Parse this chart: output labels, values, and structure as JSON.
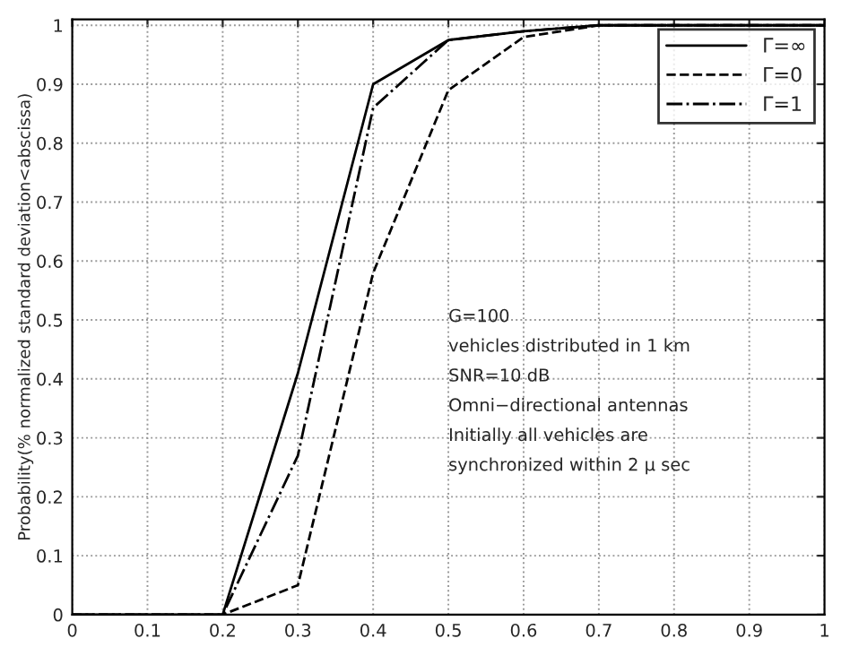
{
  "chart_data": {
    "type": "line",
    "xlabel": null,
    "ylabel": "Probability(% normalized standard deviation<abscissa)",
    "x": [
      0,
      0.1,
      0.2,
      0.3,
      0.4,
      0.5,
      0.6,
      0.7,
      0.8,
      0.9,
      1.0
    ],
    "series": [
      {
        "name": "Γ=∞",
        "color": "#000000",
        "line_style": "solid",
        "values": [
          0,
          0,
          0,
          0.41,
          0.9,
          0.975,
          0.99,
          1.0,
          1.0,
          1.0,
          1.0
        ]
      },
      {
        "name": "Γ=0",
        "color": "#000000",
        "line_style": "dashed",
        "values": [
          0,
          0,
          0,
          0.05,
          0.58,
          0.89,
          0.98,
          1.0,
          1.0,
          1.0,
          1.0
        ]
      },
      {
        "name": "Γ=1",
        "color": "#000000",
        "line_style": "dashdot",
        "values": [
          0,
          0,
          0,
          0.27,
          0.86,
          0.975,
          0.99,
          1.0,
          1.0,
          1.0,
          1.0
        ]
      }
    ],
    "annotations": [
      "G=100",
      "vehicles distributed in 1 km",
      "SNR=10 dB",
      "Omni−directional antennas",
      "Initially all vehicles are",
      "synchronized within 2 μ sec"
    ],
    "xlim": [
      0,
      1
    ],
    "xticks": [
      0,
      0.1,
      0.2,
      0.3,
      0.4,
      0.5,
      0.6,
      0.7,
      0.8,
      0.9,
      1
    ],
    "ylim": [
      0,
      1.01
    ],
    "yticks": [
      0,
      0.1,
      0.2,
      0.3,
      0.4,
      0.5,
      0.6,
      0.7,
      0.8,
      0.9,
      1
    ],
    "grid": true,
    "legend": "top right",
    "marker": "none"
  }
}
